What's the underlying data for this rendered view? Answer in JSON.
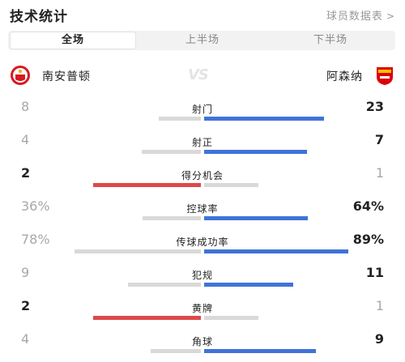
{
  "header": {
    "title": "技术统计",
    "link_label": "球员数据表",
    "link_icon": "chevron-right-icon"
  },
  "tabs": [
    {
      "label": "全场",
      "active": true
    },
    {
      "label": "上半场",
      "active": false
    },
    {
      "label": "下半场",
      "active": false
    }
  ],
  "teams": {
    "home": {
      "name": "南安普顿",
      "crest_icon": "southampton-crest-icon"
    },
    "away": {
      "name": "阿森纳",
      "crest_icon": "arsenal-crest-icon"
    },
    "vs_label": "VS"
  },
  "colors": {
    "home_bar": "#e0484a",
    "away_bar": "#3f73d8",
    "track": "#d9d9d9"
  },
  "stats": [
    {
      "label": "射门",
      "home": "8",
      "away": "23",
      "home_share": 0.258,
      "away_share": 0.742
    },
    {
      "label": "射正",
      "home": "4",
      "away": "7",
      "home_share": 0.364,
      "away_share": 0.636
    },
    {
      "label": "得分机会",
      "home": "2",
      "away": "1",
      "home_share": 0.667,
      "away_share": 0.333
    },
    {
      "label": "控球率",
      "home": "36%",
      "away": "64%",
      "home_share": 0.36,
      "away_share": 0.64
    },
    {
      "label": "传球成功率",
      "home": "78%",
      "away": "89%",
      "home_share": 0.78,
      "away_share": 0.89
    },
    {
      "label": "犯规",
      "home": "9",
      "away": "11",
      "home_share": 0.45,
      "away_share": 0.55
    },
    {
      "label": "黄牌",
      "home": "2",
      "away": "1",
      "home_share": 0.667,
      "away_share": 0.333
    },
    {
      "label": "角球",
      "home": "4",
      "away": "9",
      "home_share": 0.308,
      "away_share": 0.692
    }
  ]
}
